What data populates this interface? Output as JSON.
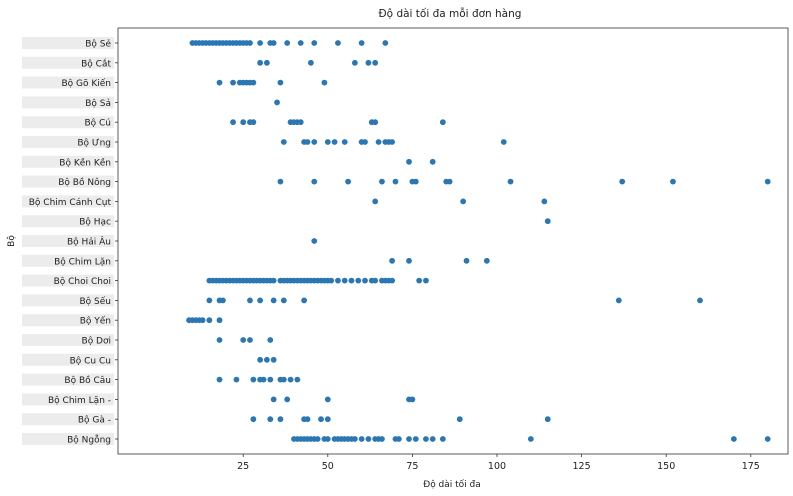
{
  "chart_data": {
    "type": "scatter",
    "title": "Độ dài tối đa mỗi đơn hàng",
    "xlabel": "Độ dài tối đa",
    "ylabel": "Bộ",
    "xlim": [
      -12,
      186
    ],
    "xticks": [
      {
        "value": 25,
        "label": "25"
      },
      {
        "value": 50,
        "label": "50"
      },
      {
        "value": 75,
        "label": "75"
      },
      {
        "value": 100,
        "label": "100"
      },
      {
        "value": 125,
        "label": "125"
      },
      {
        "value": 150,
        "label": "150"
      },
      {
        "value": 175,
        "label": "175"
      }
    ],
    "grid": false,
    "marker_color": "#2a77b4",
    "categories": [
      "Bộ Sẻ",
      "Bộ Cắt",
      "Bộ Gõ Kiến",
      "Bộ Sả",
      "Bộ Cú",
      "Bộ Ưng",
      "Bộ Kền Kền",
      "Bộ Bồ Nông",
      "Bộ Chim Cánh Cụt",
      "Bộ Hạc",
      "Bộ Hải Âu",
      "Bộ Chim Lặn",
      "Bộ Choi Choi",
      "Bộ Sếu",
      "Bộ Yến",
      "Bộ Dơi",
      "Bộ Cu Cu",
      "Bộ Bồ Câu",
      "Bộ Chim Lặn -",
      "Bộ Gà -",
      "Bộ Ngỗng"
    ],
    "series": [
      {
        "category": "Bộ Sẻ",
        "x": [
          10,
          11,
          12,
          13,
          14,
          15,
          16,
          17,
          18,
          19,
          20,
          21,
          22,
          23,
          24,
          25,
          26,
          27,
          30,
          33,
          34,
          38,
          42,
          46,
          53,
          60,
          67
        ]
      },
      {
        "category": "Bộ Cắt",
        "x": [
          30,
          32,
          45,
          58,
          62,
          64
        ]
      },
      {
        "category": "Bộ Gõ Kiến",
        "x": [
          18,
          22,
          24,
          25,
          26,
          27,
          28,
          36,
          49
        ]
      },
      {
        "category": "Bộ Sả",
        "x": [
          35
        ]
      },
      {
        "category": "Bộ Cú",
        "x": [
          22,
          25,
          27,
          28,
          39,
          40,
          41,
          42,
          63,
          64,
          84
        ]
      },
      {
        "category": "Bộ Ưng",
        "x": [
          37,
          43,
          44,
          46,
          50,
          52,
          55,
          60,
          61,
          65,
          67,
          68,
          69,
          102
        ]
      },
      {
        "category": "Bộ Kền Kền",
        "x": [
          74,
          81
        ]
      },
      {
        "category": "Bộ Bồ Nông",
        "x": [
          36,
          46,
          56,
          66,
          70,
          75,
          76,
          85,
          86,
          104,
          137,
          152,
          180
        ]
      },
      {
        "category": "Bộ Chim Cánh Cụt",
        "x": [
          64,
          90,
          114
        ]
      },
      {
        "category": "Bộ Hạc",
        "x": [
          115
        ]
      },
      {
        "category": "Bộ Hải Âu",
        "x": [
          46
        ]
      },
      {
        "category": "Bộ Chim Lặn",
        "x": [
          69,
          74,
          91,
          97
        ]
      },
      {
        "category": "Bộ Choi Choi",
        "x": [
          15,
          16,
          17,
          18,
          19,
          20,
          21,
          22,
          23,
          24,
          25,
          26,
          27,
          28,
          29,
          30,
          31,
          32,
          33,
          34,
          36,
          37,
          38,
          39,
          40,
          41,
          42,
          43,
          44,
          45,
          46,
          47,
          48,
          49,
          50,
          51,
          53,
          55,
          57,
          59,
          61,
          63,
          64,
          66,
          67,
          68,
          69,
          77,
          79
        ]
      },
      {
        "category": "Bộ Sếu",
        "x": [
          15,
          18,
          19,
          27,
          30,
          34,
          37,
          43,
          136,
          160
        ]
      },
      {
        "category": "Bộ Yến",
        "x": [
          9,
          10,
          11,
          12,
          13,
          15,
          18
        ]
      },
      {
        "category": "Bộ Dơi",
        "x": [
          18,
          25,
          27,
          33
        ]
      },
      {
        "category": "Bộ Cu Cu",
        "x": [
          30,
          32,
          34
        ]
      },
      {
        "category": "Bộ Bồ Câu",
        "x": [
          18,
          23,
          28,
          30,
          31,
          33,
          36,
          37,
          39,
          41
        ]
      },
      {
        "category": "Bộ Chim Lặn -",
        "x": [
          34,
          38,
          50,
          74,
          75
        ]
      },
      {
        "category": "Bộ Gà -",
        "x": [
          28,
          33,
          36,
          43,
          44,
          48,
          50,
          89,
          115
        ]
      },
      {
        "category": "Bộ Ngỗng",
        "x": [
          40,
          41,
          42,
          43,
          44,
          45,
          46,
          47,
          49,
          50,
          52,
          53,
          54,
          55,
          56,
          57,
          58,
          60,
          62,
          64,
          65,
          66,
          70,
          71,
          74,
          76,
          79,
          81,
          84,
          110,
          170,
          180
        ]
      }
    ]
  }
}
